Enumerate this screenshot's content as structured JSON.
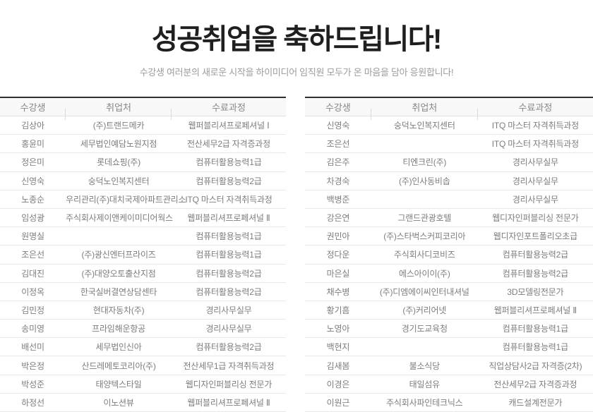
{
  "header": {
    "title": "성공취업을 축하드립니다!",
    "subtitle": "수강생 여러분의 새로운 시작을 하이미디어 임직원 모두가 온 마음을 담아 응원합니다!"
  },
  "columns": [
    "수강생",
    "취업처",
    "수료과정"
  ],
  "colors": {
    "table_top_border": "#2f2f2f",
    "header_bg": "#f8f8f8",
    "header_text": "#868686",
    "cell_text": "#7d7d7d",
    "row_border": "#e9e9e9",
    "title_text": "#1f1f1f",
    "subtitle_text": "#9c9c9c"
  },
  "tables": [
    {
      "name": "left-employment-table",
      "rows": [
        [
          "김상아",
          "(주)트랜드메카",
          "웹퍼블리셔프로페셔널 Ⅰ"
        ],
        [
          "홍윤미",
          "세무법인예담노원지점",
          "전산세무2급 자격증과정"
        ],
        [
          "정은미",
          "롯데쇼핑(주)",
          "컴퓨터활용능력1급"
        ],
        [
          "신영숙",
          "숭덕노인복지센터",
          "컴퓨터활용능력2급"
        ],
        [
          "노종순",
          "우리관리(주)대치국제아파트관리소",
          "ITQ 마스터 자격취득과정"
        ],
        [
          "임성광",
          "주식회사제이앤케이미디어웍스",
          "웹퍼블리셔프로페셔널 Ⅱ"
        ],
        [
          "원명실",
          "",
          "컴퓨터활용능력1급"
        ],
        [
          "조은선",
          "(주)광신엔터프라이즈",
          "컴퓨터활용능력1급"
        ],
        [
          "김대진",
          "(주)대양오토출산지점",
          "컴퓨터활용능력2급"
        ],
        [
          "이정옥",
          "한국실버결연상담센타",
          "컴퓨터활용능력2급"
        ],
        [
          "김민정",
          "현대자동차(주)",
          "경리사무실무"
        ],
        [
          "송미영",
          "프라임해운항공",
          "경리사무실무"
        ],
        [
          "배선미",
          "세무법인신아",
          "컴퓨터활용능력2급"
        ],
        [
          "박은정",
          "산드레메토코리아(주)",
          "전산세무1급 자격취득과정"
        ],
        [
          "박성준",
          "태양텍스타일",
          "웹디자인퍼블리싱 전문가"
        ],
        [
          "하정선",
          "이노션뷰",
          "웹퍼블리셔프로페셔널 Ⅱ"
        ]
      ]
    },
    {
      "name": "right-employment-table",
      "rows": [
        [
          "신영숙",
          "숭덕노인복지센터",
          "ITQ 마스터 자격취득과정"
        ],
        [
          "조은선",
          "",
          "ITQ 마스터 자격취득과정"
        ],
        [
          "김은주",
          "티엔크린(주)",
          "경리사무실무"
        ],
        [
          "차경숙",
          "(주)인사동비솝",
          "경리사무실무"
        ],
        [
          "백병준",
          "",
          "경리사무실무"
        ],
        [
          "강은연",
          "그랜드관광호텔",
          "웹디자인퍼블리싱 전문가"
        ],
        [
          "권민아",
          "(주)스타벅스커피코리아",
          "웹디자인포트폴리오초급"
        ],
        [
          "정다운",
          "주식회사디코비즈",
          "컴퓨터활용능력2급"
        ],
        [
          "마은실",
          "에스아이이(주)",
          "컴퓨터활용능력2급"
        ],
        [
          "채수병",
          "(주)디엠에이씨인터내셔널",
          "3D모델링전문가"
        ],
        [
          "황기흠",
          "(주)커리어넷",
          "웹퍼블리셔프로페셔널 Ⅱ"
        ],
        [
          "노영아",
          "경기도교육청",
          "컴퓨터활용능력1급"
        ],
        [
          "백현지",
          "",
          "컴퓨터활용능력1급"
        ],
        [
          "김새봄",
          "불소식당",
          "직업상담사2급 자격증(2차)"
        ],
        [
          "이경은",
          "태일섬유",
          "전산세무2급 자격증과정"
        ],
        [
          "이원근",
          "주식회사파인테크닉스",
          "캐드설계전문가"
        ]
      ]
    }
  ]
}
